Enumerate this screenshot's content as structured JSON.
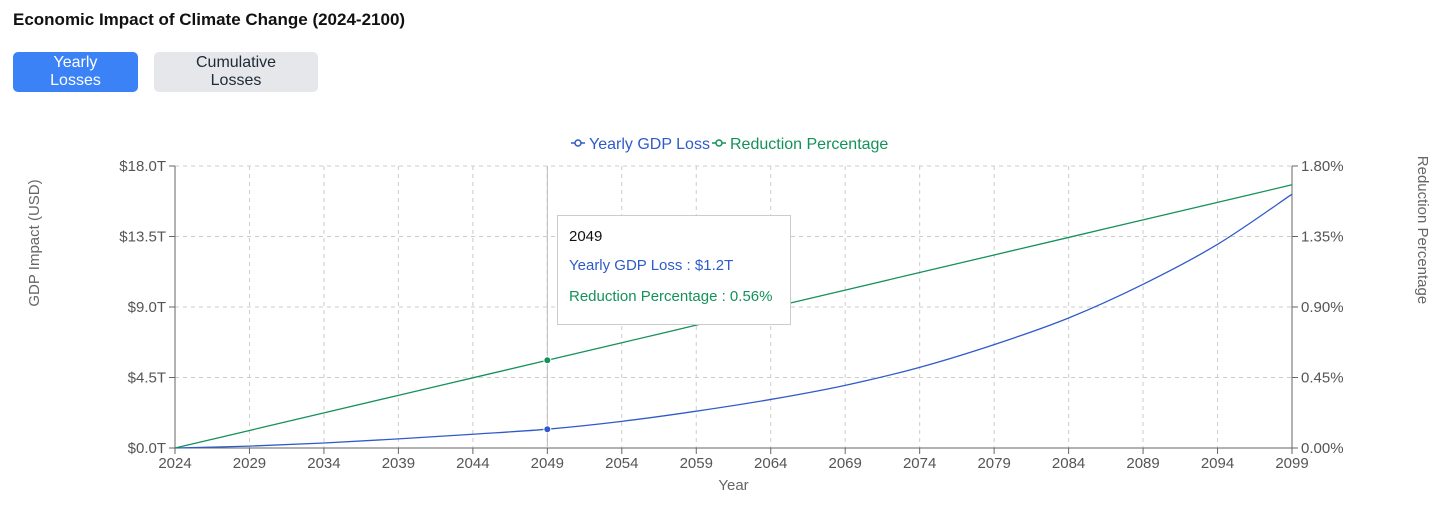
{
  "title": "Economic Impact of Climate Change (2024-2100)",
  "buttons": {
    "yearly": "Yearly Losses",
    "cumulative": "Cumulative Losses"
  },
  "colors": {
    "gdp": "#2f5bc9",
    "reduction": "#14915a",
    "active_button": "#3b82f6",
    "inactive_button": "#e5e7eb"
  },
  "chart_data": {
    "type": "line",
    "xlabel": "Year",
    "ylabel_left": "GDP Impact (USD)",
    "ylabel_right": "Reduction Percentage",
    "x_ticks": [
      2024,
      2029,
      2034,
      2039,
      2044,
      2049,
      2054,
      2059,
      2064,
      2069,
      2074,
      2079,
      2084,
      2089,
      2094,
      2099
    ],
    "xlim": [
      2024,
      2099
    ],
    "ylim_left": [
      0,
      18
    ],
    "ylim_right": [
      0,
      1.8
    ],
    "y_ticks_left": [
      "$0.0T",
      "$4.5T",
      "$9.0T",
      "$13.5T",
      "$18.0T"
    ],
    "y_ticks_right": [
      "0.00%",
      "0.45%",
      "0.90%",
      "1.35%",
      "1.80%"
    ],
    "grid": true,
    "legend_position": "top-center",
    "series": [
      {
        "name": "Yearly GDP Loss",
        "axis": "left",
        "x": [
          2024,
          2029,
          2034,
          2039,
          2044,
          2049,
          2054,
          2059,
          2064,
          2069,
          2074,
          2079,
          2084,
          2089,
          2094,
          2099
        ],
        "values": [
          0.0,
          0.12,
          0.32,
          0.58,
          0.88,
          1.2,
          1.7,
          2.35,
          3.1,
          4.0,
          5.15,
          6.6,
          8.3,
          10.45,
          13.0,
          16.2
        ]
      },
      {
        "name": "Reduction Percentage",
        "axis": "right",
        "x": [
          2024,
          2029,
          2034,
          2039,
          2044,
          2049,
          2054,
          2059,
          2064,
          2069,
          2074,
          2079,
          2084,
          2089,
          2094,
          2099
        ],
        "values": [
          0.0,
          0.112,
          0.224,
          0.336,
          0.448,
          0.56,
          0.672,
          0.784,
          0.896,
          1.008,
          1.12,
          1.232,
          1.344,
          1.456,
          1.568,
          1.68
        ]
      }
    ],
    "tooltip": {
      "year": "2049",
      "gdp_text": "Yearly GDP Loss : $1.2T",
      "reduction_text": "Reduction Percentage : 0.56%"
    }
  }
}
